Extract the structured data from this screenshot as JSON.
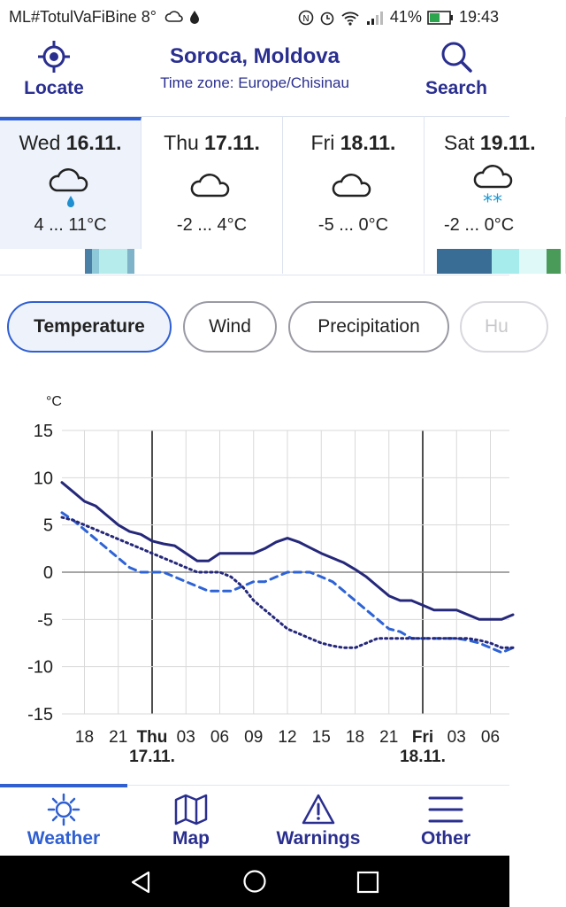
{
  "status_bar": {
    "carrier": "ML#TotulVaFiBine 8°",
    "battery": "41%",
    "time": "19:43",
    "icons": [
      "weather-cloud-icon",
      "drop-icon",
      "nfc-icon",
      "alarm-icon",
      "wifi-icon",
      "signal-icon",
      "battery-icon"
    ]
  },
  "header": {
    "locate_label": "Locate",
    "title": "Soroca, Moldova",
    "subtitle": "Time zone: Europe/Chisinau",
    "search_label": "Search"
  },
  "days": [
    {
      "dow": "Wed",
      "date": "16.11.",
      "range": "4 ... 11°C",
      "icon": "cloud-rain-icon",
      "strip": [
        "#ffffff",
        "#ffffff",
        "#ffffff",
        "#ffffff",
        "#ffffff",
        "#ffffff",
        "#ffffff",
        "#ffffff",
        "#ffffff",
        "#ffffff",
        "#ffffff",
        "#ffffff",
        "#4a7fa6",
        "#8ec9d9",
        "#b6ecec",
        "#b6ecec",
        "#b6ecec",
        "#b6ecec",
        "#7fb3c9",
        "#ffffff"
      ]
    },
    {
      "dow": "Thu",
      "date": "17.11.",
      "range": "-2 ... 4°C",
      "icon": "cloud-icon",
      "strip": []
    },
    {
      "dow": "Fri",
      "date": "18.11.",
      "range": "-5 ... 0°C",
      "icon": "cloud-icon",
      "strip": []
    },
    {
      "dow": "Sat",
      "date": "19.11.",
      "range": "-2 ... 0°C",
      "icon": "cloud-snow-icon",
      "strip": [
        "#3a6d95",
        "#3a6d95",
        "#3a6d95",
        "#3a6d95",
        "#a7ecec",
        "#a7ecec",
        "#dff8f8",
        "#dff8f8",
        "#4a9a5a"
      ]
    }
  ],
  "tabs": [
    "Temperature",
    "Wind",
    "Precipitation",
    "Hu"
  ],
  "chart_data": {
    "type": "line",
    "ylabel": "°C",
    "ylim": [
      -15,
      15
    ],
    "yticks": [
      15,
      10,
      5,
      0,
      -5,
      -10,
      -15
    ],
    "x": [
      16,
      17,
      18,
      19,
      20,
      21,
      22,
      23,
      24,
      25,
      26,
      27,
      28,
      29,
      30,
      31,
      32,
      33,
      34,
      35,
      36,
      37,
      38,
      39,
      40,
      41,
      42,
      43,
      44,
      45,
      46,
      47,
      48,
      49,
      50,
      51,
      52,
      53,
      54,
      55,
      56
    ],
    "xticks": [
      {
        "x": 18,
        "label": "18"
      },
      {
        "x": 21,
        "label": "21"
      },
      {
        "x": 24,
        "label": "Thu",
        "sub": "17.11.",
        "day": true
      },
      {
        "x": 27,
        "label": "03"
      },
      {
        "x": 30,
        "label": "06"
      },
      {
        "x": 33,
        "label": "09"
      },
      {
        "x": 36,
        "label": "12"
      },
      {
        "x": 39,
        "label": "15"
      },
      {
        "x": 42,
        "label": "18"
      },
      {
        "x": 45,
        "label": "21"
      },
      {
        "x": 48,
        "label": "Fri",
        "sub": "18.11.",
        "day": true
      },
      {
        "x": 51,
        "label": "03"
      },
      {
        "x": 54,
        "label": "06"
      }
    ],
    "series": [
      {
        "style": "solid",
        "color": "#25287a",
        "values": [
          9.5,
          8.5,
          7.5,
          7,
          6,
          5,
          4.3,
          4,
          3.3,
          3,
          2.8,
          2,
          1.2,
          1.2,
          2,
          2,
          2,
          2,
          2.5,
          3.2,
          3.6,
          3.2,
          2.6,
          2,
          1.5,
          1,
          0.3,
          -0.5,
          -1.5,
          -2.5,
          -3,
          -3,
          -3.5,
          -4,
          -4,
          -4,
          -4.5,
          -5,
          -5,
          -5,
          -4.5
        ]
      },
      {
        "style": "dashed",
        "color": "#2e63d6",
        "values": [
          6.3,
          5.5,
          4.5,
          3.5,
          2.5,
          1.5,
          0.5,
          0,
          0,
          0,
          -0.5,
          -1,
          -1.5,
          -2,
          -2,
          -2,
          -1.5,
          -1,
          -1,
          -0.5,
          0,
          0,
          0,
          -0.5,
          -1,
          -2,
          -3,
          -4,
          -5,
          -6,
          -6.3,
          -7,
          -7,
          -7,
          -7,
          -7,
          -7.2,
          -7.5,
          -8,
          -8.5,
          -8
        ]
      },
      {
        "style": "dotted",
        "color": "#25287a",
        "values": [
          5.8,
          5.5,
          5,
          4.5,
          4,
          3.5,
          3,
          2.5,
          2,
          1.5,
          1,
          0.5,
          0,
          0,
          0,
          -0.5,
          -1.5,
          -3,
          -4,
          -5,
          -6,
          -6.5,
          -7,
          -7.5,
          -7.8,
          -8,
          -8,
          -7.5,
          -7,
          -7,
          -7,
          -7,
          -7,
          -7,
          -7,
          -7,
          -7,
          -7.2,
          -7.5,
          -8,
          -8
        ]
      }
    ]
  },
  "nav": [
    {
      "label": "Weather",
      "icon": "sun-icon"
    },
    {
      "label": "Map",
      "icon": "map-icon"
    },
    {
      "label": "Warnings",
      "icon": "warning-icon"
    },
    {
      "label": "Other",
      "icon": "menu-icon"
    }
  ],
  "colors": {
    "brand": "#2a2f8f",
    "accent": "#2f5fd1",
    "active_bg": "#edf2fb"
  }
}
